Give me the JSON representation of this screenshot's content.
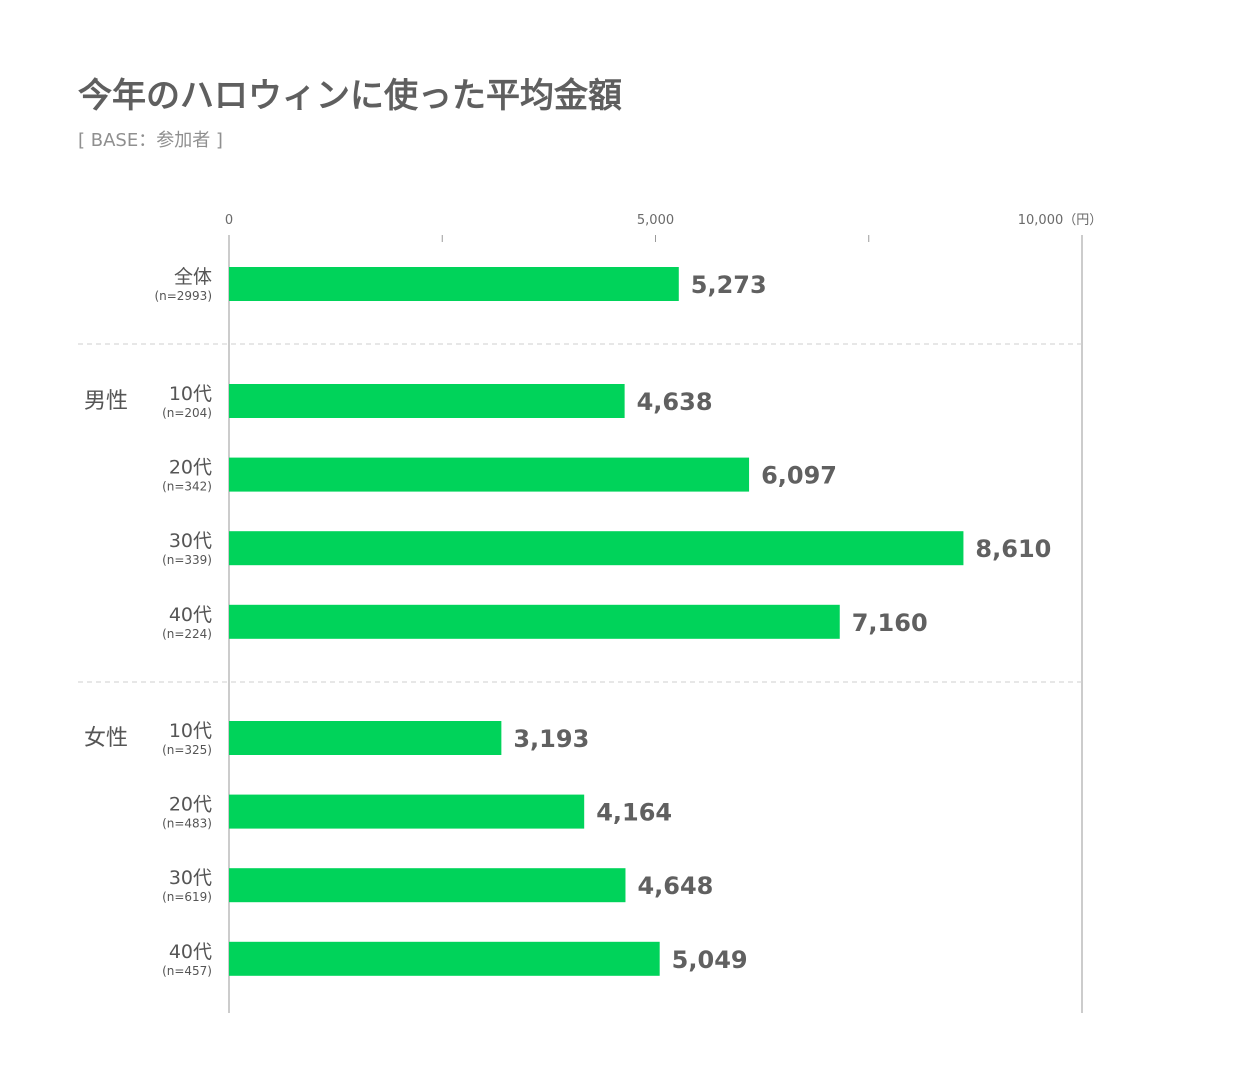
{
  "chart_data": {
    "type": "bar",
    "orientation": "horizontal",
    "title": "今年のハロウィンに使った平均金額",
    "subtitle": "[ BASE：参加者 ]",
    "xlim": [
      0,
      10000
    ],
    "x_ticks": [
      {
        "value": 0,
        "label": "0"
      },
      {
        "value": 2500,
        "label": ""
      },
      {
        "value": 5000,
        "label": "5,000"
      },
      {
        "value": 7500,
        "label": ""
      },
      {
        "value": 10000,
        "label": "10,000（円）"
      }
    ],
    "bar_color": "#00d35a",
    "groups": [
      {
        "label": "",
        "rows": [
          {
            "category": "全体",
            "n": "(n=2993)",
            "value": 5273,
            "value_label": "5,273"
          }
        ]
      },
      {
        "label": "男性",
        "rows": [
          {
            "category": "10代",
            "n": "(n=204)",
            "value": 4638,
            "value_label": "4,638"
          },
          {
            "category": "20代",
            "n": "(n=342)",
            "value": 6097,
            "value_label": "6,097"
          },
          {
            "category": "30代",
            "n": "(n=339)",
            "value": 8610,
            "value_label": "8,610"
          },
          {
            "category": "40代",
            "n": "(n=224)",
            "value": 7160,
            "value_label": "7,160"
          }
        ]
      },
      {
        "label": "女性",
        "rows": [
          {
            "category": "10代",
            "n": "(n=325)",
            "value": 3193,
            "value_label": "3,193"
          },
          {
            "category": "20代",
            "n": "(n=483)",
            "value": 4164,
            "value_label": "4,164"
          },
          {
            "category": "30代",
            "n": "(n=619)",
            "value": 4648,
            "value_label": "4,648"
          },
          {
            "category": "40代",
            "n": "(n=457)",
            "value": 5049,
            "value_label": "5,049"
          }
        ]
      }
    ]
  }
}
